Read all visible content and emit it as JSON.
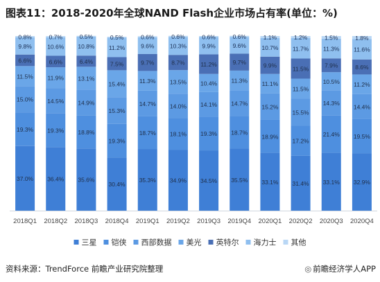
{
  "header": {
    "title": "图表11：2018-2020年全球NAND Flash企业市场占有率(单位：%)"
  },
  "footer": {
    "source": "资料来源：TrendForce 前瞻产业研究院整理",
    "brand": "前瞻经济学人APP",
    "brand_icon": "camera-icon"
  },
  "chart_data": {
    "type": "bar",
    "stacked": true,
    "categories": [
      "2018Q1",
      "2018Q2",
      "2018Q3",
      "2018Q4",
      "2019Q1",
      "2019Q2",
      "2019Q3",
      "2019Q4",
      "2020Q1",
      "2020Q2",
      "2020Q3",
      "2020Q4"
    ],
    "series": [
      {
        "name": "三星",
        "color": "#3f7fd6",
        "values": [
          37.0,
          36.4,
          35.6,
          30.4,
          35.3,
          34.9,
          34.5,
          35.5,
          33.1,
          31.4,
          33.1,
          32.9
        ]
      },
      {
        "name": "铠侠",
        "color": "#4e8fdf",
        "values": [
          19.3,
          19.3,
          18.8,
          19.3,
          18.7,
          18.1,
          19.3,
          18.7,
          18.9,
          17.2,
          21.4,
          19.5
        ]
      },
      {
        "name": "西部数据",
        "color": "#5c9ae3",
        "values": [
          15.0,
          14.5,
          14.9,
          15.3,
          14.7,
          14.0,
          14.1,
          14.7,
          15.2,
          15.5,
          14.3,
          14.4
        ]
      },
      {
        "name": "美光",
        "color": "#6aa6e8",
        "values": [
          11.5,
          11.9,
          13.1,
          15.4,
          11.3,
          13.5,
          10.4,
          11.3,
          11.1,
          11.5,
          10.5,
          11.2
        ]
      },
      {
        "name": "英特尔",
        "color": "#4a6fb5",
        "values": [
          6.6,
          6.6,
          6.4,
          7.5,
          9.7,
          8.7,
          11.2,
          9.7,
          9.9,
          11.5,
          7.9,
          8.6
        ]
      },
      {
        "name": "海力士",
        "color": "#8fbfef",
        "values": [
          9.8,
          10.6,
          10.8,
          11.2,
          9.6,
          10.3,
          9.9,
          9.6,
          10.7,
          11.7,
          11.3,
          11.6
        ]
      },
      {
        "name": "其他",
        "color": "#b9d7f5",
        "values": [
          0.8,
          0.7,
          0.5,
          0.5,
          0.6,
          0.6,
          0.6,
          0.6,
          1.1,
          1.2,
          1.5,
          1.8
        ]
      }
    ],
    "ylim": [
      0,
      100
    ],
    "grid": false,
    "legend_position": "bottom"
  }
}
